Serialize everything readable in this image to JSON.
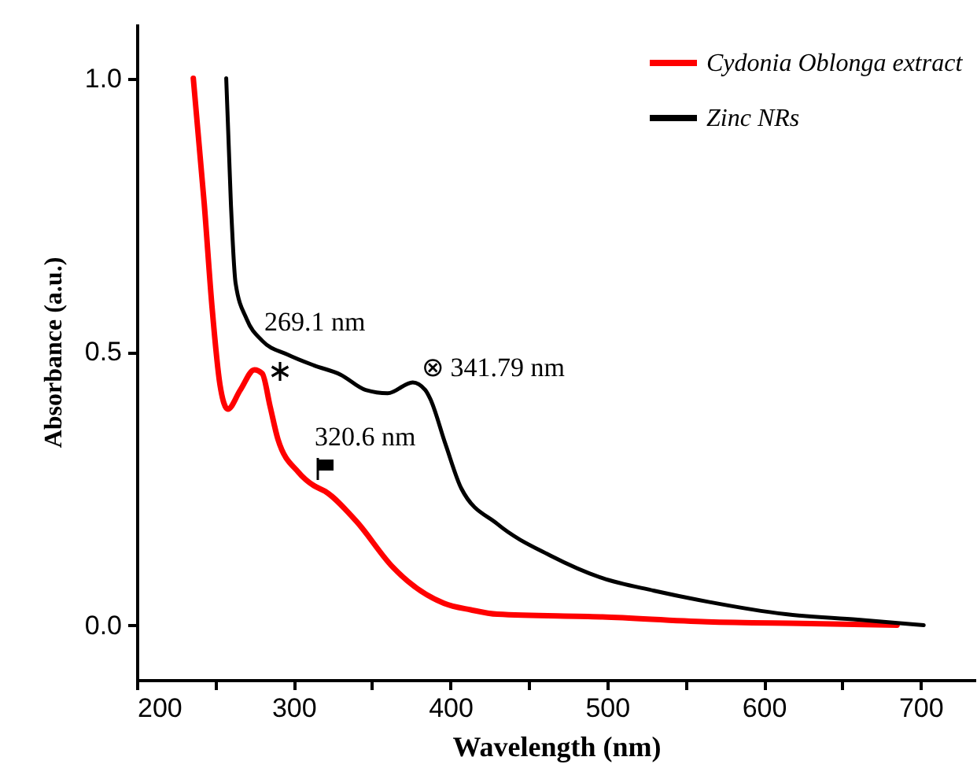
{
  "chart_data": {
    "type": "line",
    "xlabel": "Wavelength (nm)",
    "ylabel": "Absorbance (a.u.)",
    "xlim": [
      200,
      735
    ],
    "ylim": [
      -0.1,
      1.1
    ],
    "xticks": [
      200,
      {
        "value": 250,
        "label": null
      },
      300,
      {
        "value": 350,
        "label": null
      },
      400,
      {
        "value": 450,
        "label": null
      },
      500,
      {
        "value": 550,
        "label": null
      },
      600,
      {
        "value": 650,
        "label": null
      },
      700
    ],
    "yticks": [
      {
        "value": 0,
        "label": "0.0"
      },
      0.5,
      {
        "value": 1,
        "label": "1.0"
      }
    ],
    "legend": "top right",
    "grid": false,
    "line_style": "solid",
    "series": [
      {
        "name": "Cydonia Oblonga extract",
        "color": "#ff0000",
        "x": [
          236,
          243,
          248,
          253,
          258,
          266,
          275,
          280,
          285,
          290,
          303,
          313,
          320,
          340,
          363,
          373,
          396,
          413,
          430,
          497,
          564,
          630,
          685
        ],
        "values": [
          1.0,
          0.77,
          0.58,
          0.44,
          0.395,
          0.43,
          0.467,
          0.46,
          0.4,
          0.34,
          0.28,
          0.255,
          0.245,
          0.19,
          0.107,
          0.08,
          0.04,
          0.028,
          0.02,
          0.015,
          0.006,
          0.003,
          0.0
        ]
      },
      {
        "name": "Zinc NRs",
        "color": "#000000",
        "x": [
          257,
          260,
          263,
          270,
          280,
          296,
          313,
          330,
          346,
          360,
          376,
          384,
          387,
          397,
          407,
          430,
          464,
          497,
          530,
          564,
          614,
          660,
          702
        ],
        "values": [
          1.0,
          0.77,
          0.625,
          0.56,
          0.52,
          0.495,
          0.475,
          0.458,
          0.43,
          0.424,
          0.444,
          0.43,
          0.415,
          0.33,
          0.25,
          0.185,
          0.127,
          0.086,
          0.063,
          0.043,
          0.02,
          0.01,
          0.0
        ]
      }
    ],
    "annotations": [
      "269.1 nm",
      "⊗ 341.79 nm",
      "320.6 nm"
    ]
  }
}
